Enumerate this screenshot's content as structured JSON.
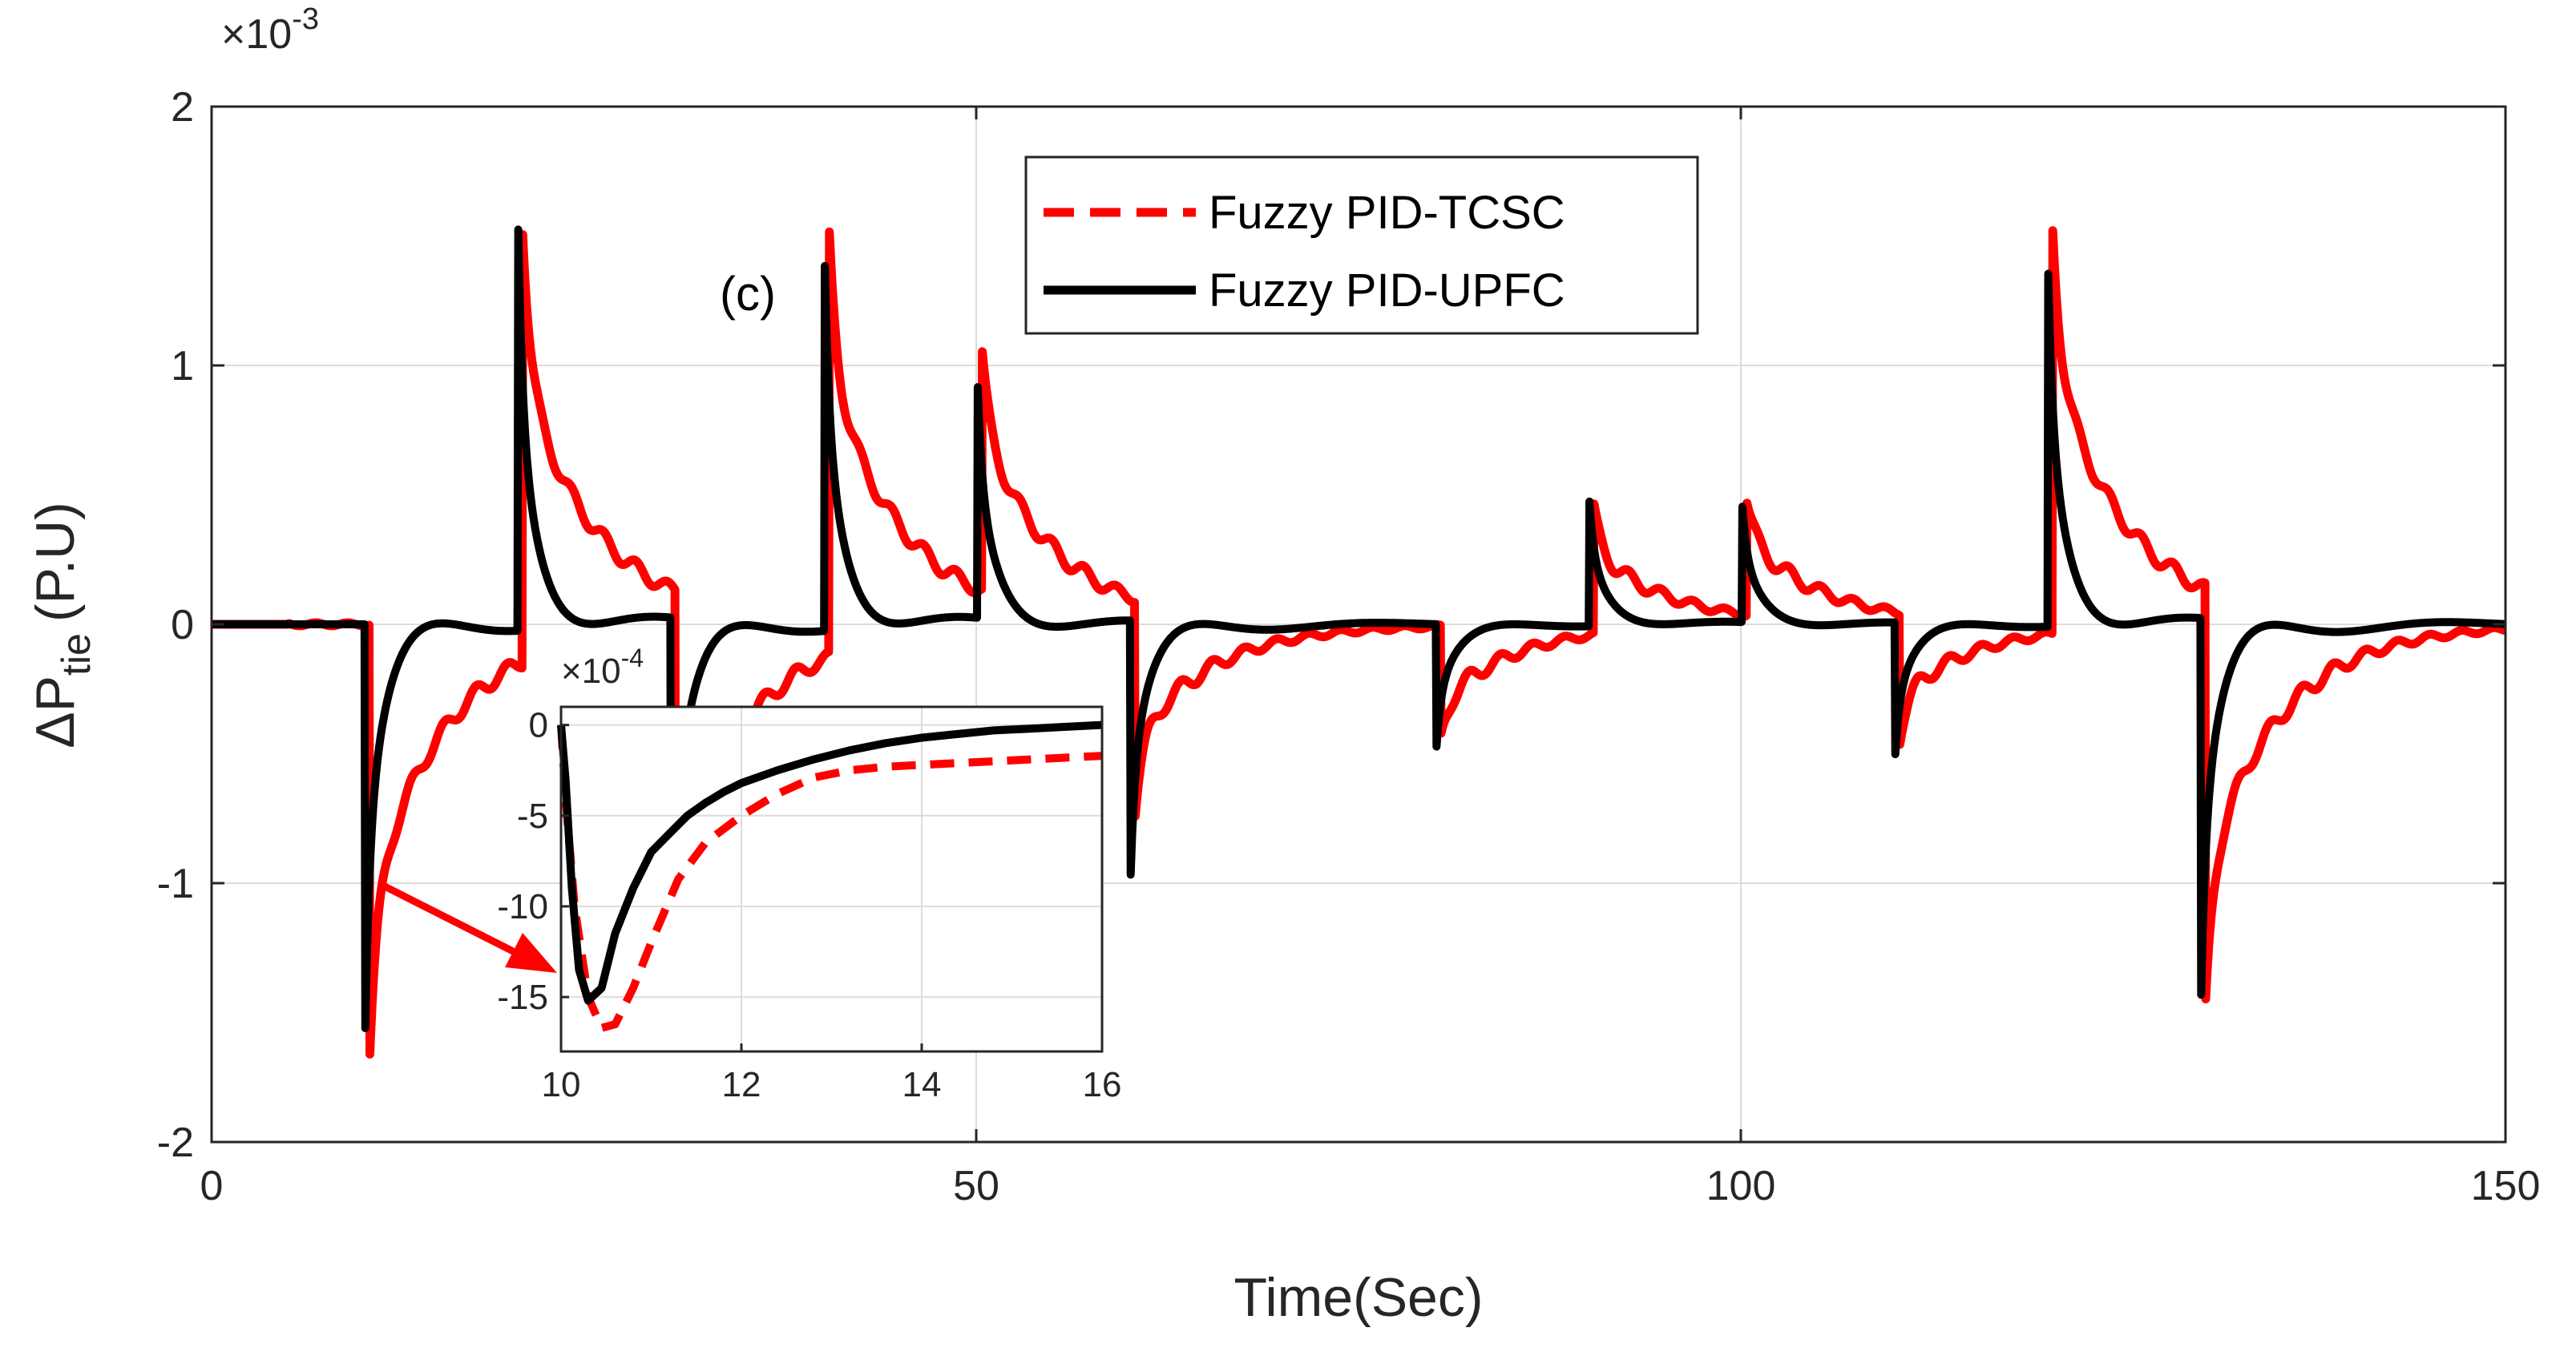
{
  "chart_data": {
    "type": "line",
    "xlabel": "Time(Sec)",
    "ylabel_main": "ΔP",
    "ylabel_sub": "tie",
    "ylabel_unit": "(P.U)",
    "exponent_main": "×10",
    "exponent_main_power": "-3",
    "xlim": [
      0,
      150
    ],
    "ylim": [
      -2,
      2
    ],
    "x_ticks": [
      0,
      50,
      100,
      150
    ],
    "y_ticks": [
      -2,
      -1,
      0,
      1,
      2
    ],
    "x_tick_labels": [
      "0",
      "50",
      "100",
      "150"
    ],
    "y_tick_labels": [
      "-2",
      "-1",
      "0",
      "1",
      "2"
    ],
    "grid": true,
    "annotation": "(c)",
    "legend": {
      "position": "top-center",
      "entries": [
        "Fuzzy PID-TCSC",
        "Fuzzy PID-UPFC"
      ]
    },
    "colors": {
      "tcsc": "#ff0000",
      "upfc": "#000000",
      "arrow": "#ff0000"
    },
    "events": [
      {
        "t": 10,
        "tcsc_peak": -1.65,
        "upfc_peak": -1.56
      },
      {
        "t": 20,
        "tcsc_peak": 1.68,
        "upfc_peak": 1.55
      },
      {
        "t": 30,
        "tcsc_peak": -1.65,
        "upfc_peak": -1.56
      },
      {
        "t": 40,
        "tcsc_peak": 1.68,
        "upfc_peak": 1.55
      },
      {
        "t": 50,
        "tcsc_peak": 0.95,
        "upfc_peak": 0.98
      },
      {
        "t": 60,
        "tcsc_peak": -0.85,
        "upfc_peak": -1.08
      },
      {
        "t": 80,
        "tcsc_peak": -0.45,
        "upfc_peak": -0.52
      },
      {
        "t": 90,
        "tcsc_peak": 0.5,
        "upfc_peak": 0.53
      },
      {
        "t": 100,
        "tcsc_peak": 0.46,
        "upfc_peak": 0.49
      },
      {
        "t": 110,
        "tcsc_peak": -0.5,
        "upfc_peak": -0.56
      },
      {
        "t": 120,
        "tcsc_peak": 1.62,
        "upfc_peak": 1.5
      },
      {
        "t": 130,
        "tcsc_peak": -1.68,
        "upfc_peak": -1.6
      }
    ],
    "inset": {
      "xlim": [
        10,
        16
      ],
      "ylim": [
        -18,
        1
      ],
      "x_ticks": [
        10,
        12,
        14,
        16
      ],
      "y_ticks": [
        0,
        -5,
        -10,
        -15
      ],
      "x_tick_labels": [
        "10",
        "12",
        "14",
        "16"
      ],
      "y_tick_labels": [
        "0",
        "-5",
        "-10",
        "-15"
      ],
      "exponent": "×10",
      "exponent_power": "-4",
      "series": [
        {
          "key": "tcsc",
          "x": [
            10.0,
            10.05,
            10.15,
            10.3,
            10.45,
            10.6,
            10.8,
            11.0,
            11.3,
            11.6,
            12.0,
            12.4,
            12.8,
            13.2,
            13.6,
            14.0,
            14.4,
            14.8,
            15.2,
            15.6,
            16.0
          ],
          "y": [
            0,
            -4,
            -10,
            -15,
            -16.7,
            -16.5,
            -14.5,
            -12.0,
            -8.5,
            -6.5,
            -5.0,
            -3.8,
            -2.9,
            -2.5,
            -2.3,
            -2.2,
            -2.1,
            -2.0,
            -1.9,
            -1.8,
            -1.7
          ]
        },
        {
          "key": "upfc",
          "x": [
            10.0,
            10.05,
            10.12,
            10.2,
            10.3,
            10.45,
            10.6,
            10.8,
            11.0,
            11.2,
            11.4,
            11.6,
            11.8,
            12.0,
            12.4,
            12.8,
            13.2,
            13.6,
            14.0,
            14.4,
            14.8,
            15.2,
            15.6,
            16.0
          ],
          "y": [
            0,
            -3,
            -9,
            -13.5,
            -15.2,
            -14.5,
            -11.5,
            -9.0,
            -7.0,
            -6.0,
            -5.0,
            -4.3,
            -3.7,
            -3.2,
            -2.5,
            -1.9,
            -1.4,
            -1.0,
            -0.7,
            -0.5,
            -0.3,
            -0.2,
            -0.1,
            0
          ]
        }
      ]
    }
  }
}
